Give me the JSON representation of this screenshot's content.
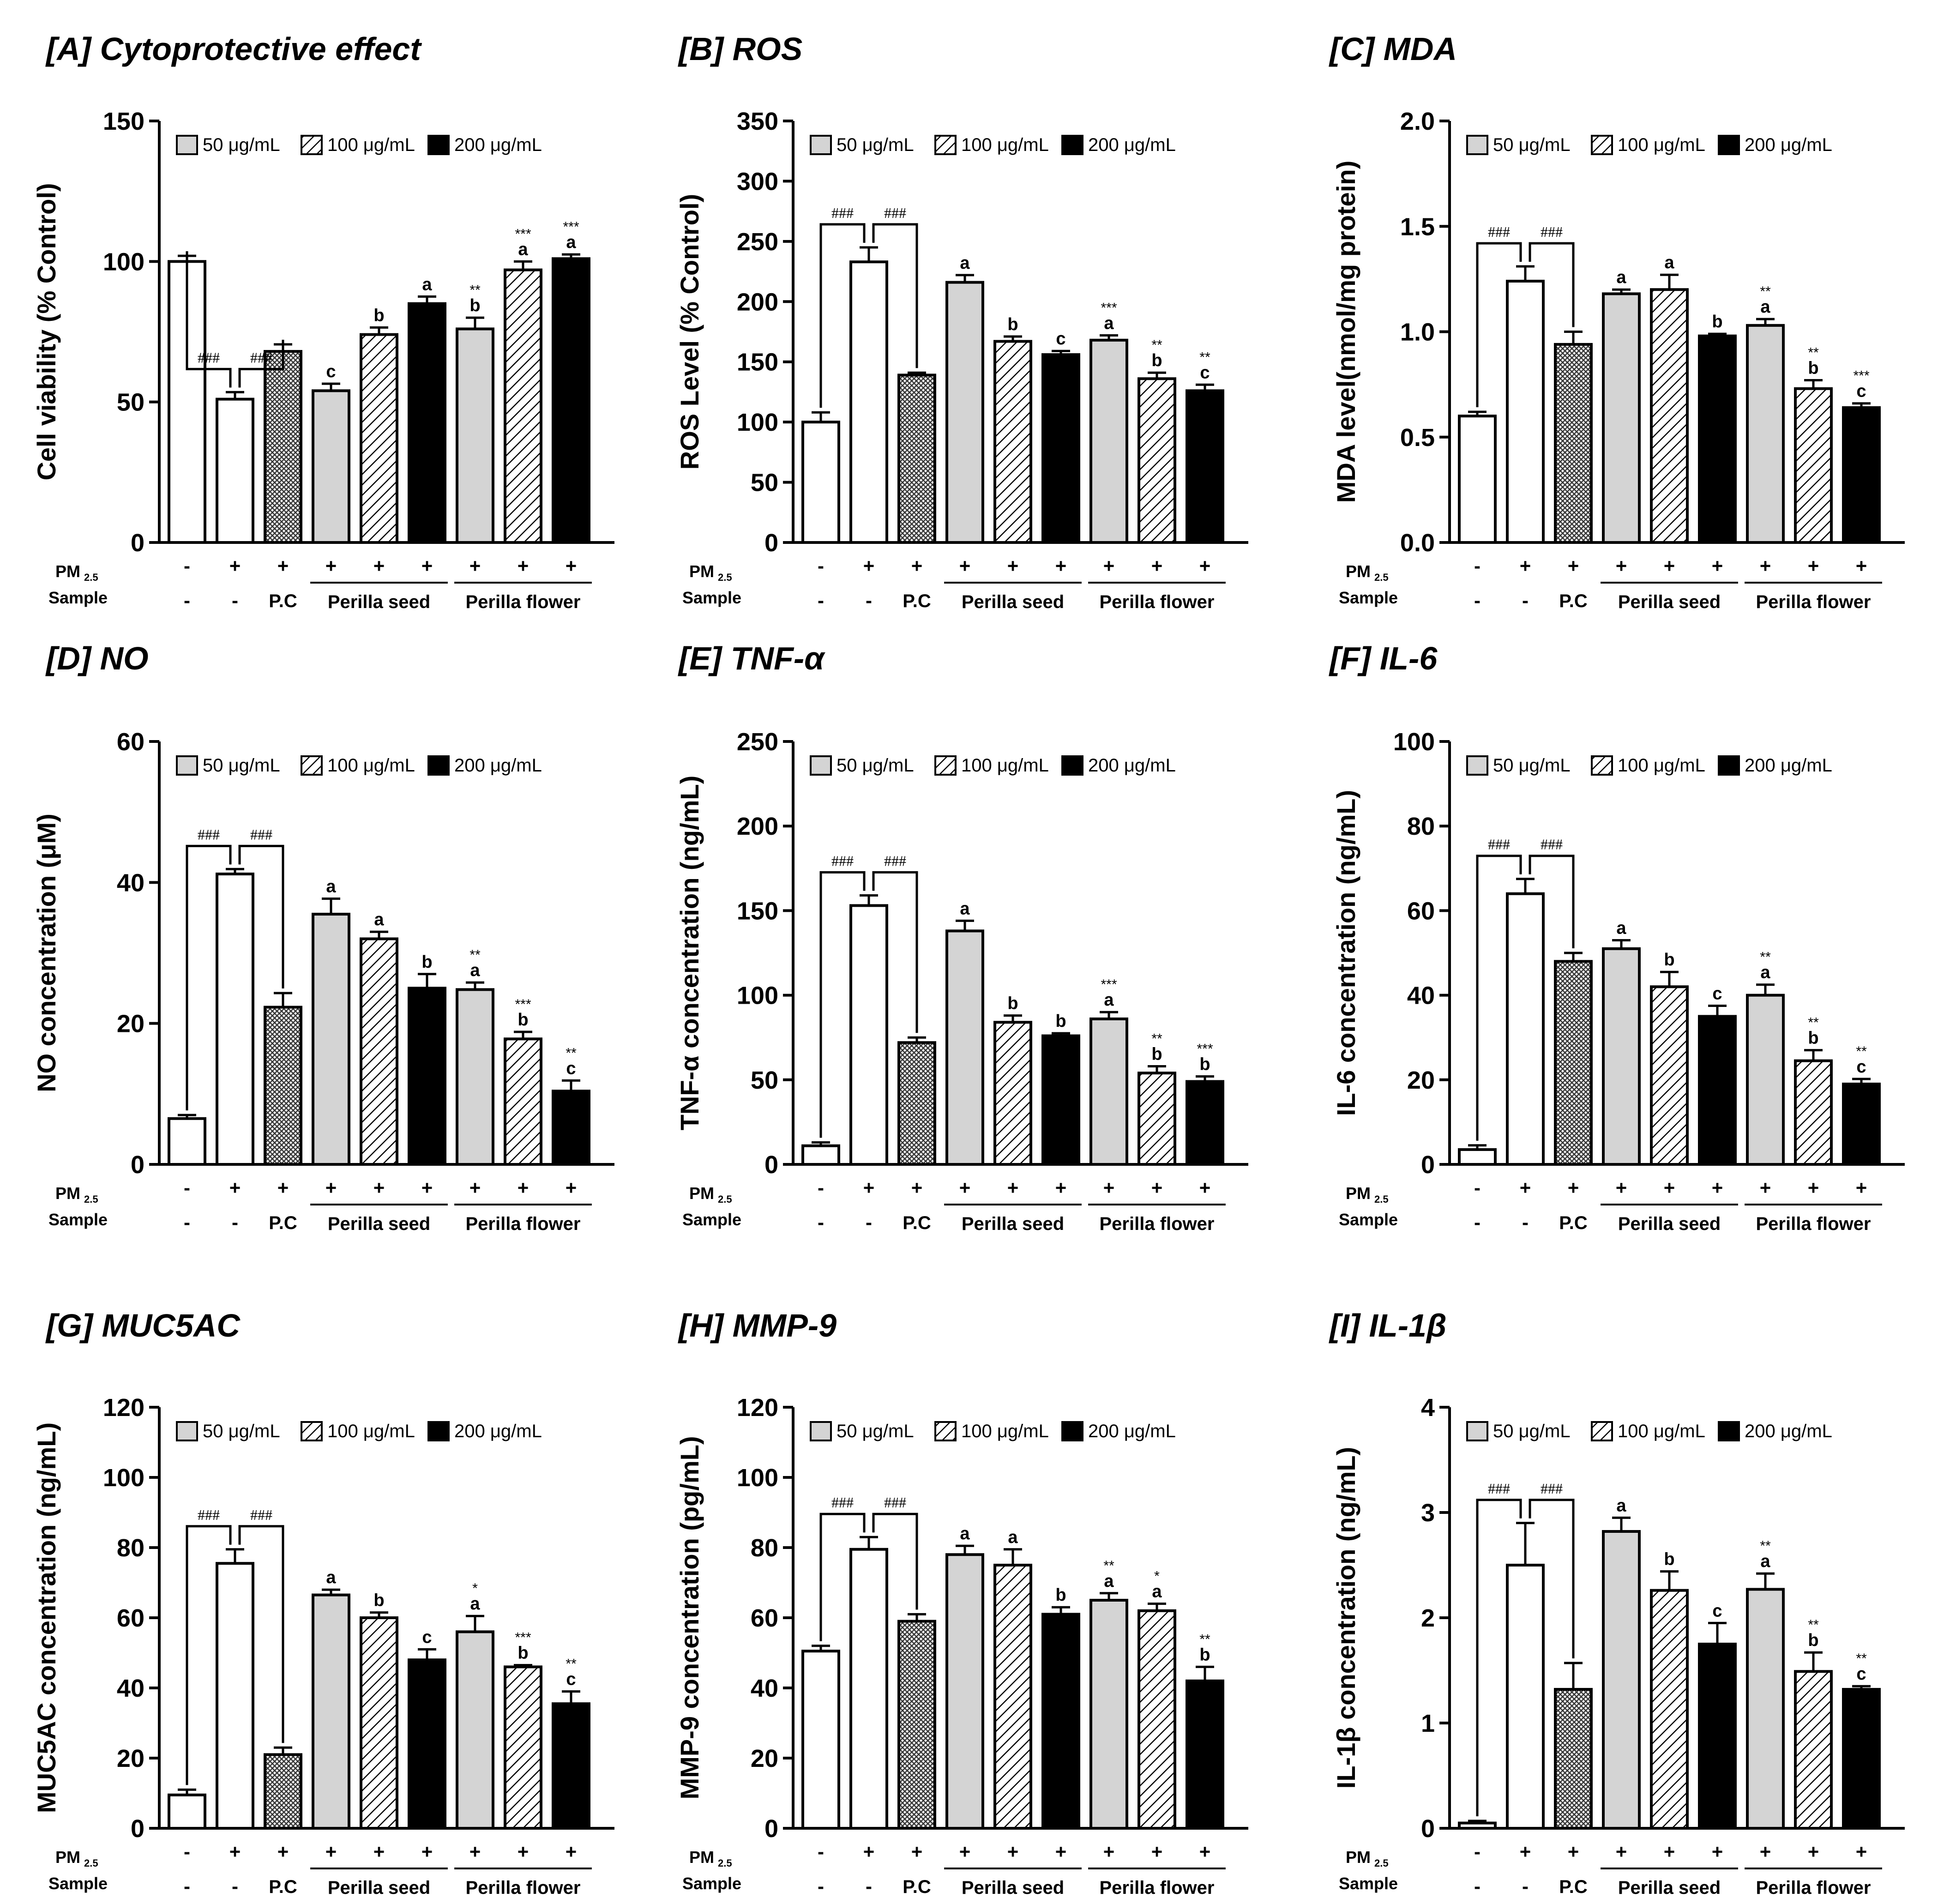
{
  "colors": {
    "white_fill": "#ffffff",
    "light_gray": "#d4d4d4",
    "black": "#000000",
    "pc_fill": "#5e5e5e"
  },
  "common": {
    "legend": [
      "50 μg/mL",
      "100 μg/mL",
      "200 μg/mL"
    ],
    "pm_row_label": "PM",
    "pm_row_sub": "2.5",
    "sample_row_label": "Sample",
    "pm_signs": [
      "-",
      "+",
      "+",
      "+",
      "+",
      "+",
      "+",
      "+",
      "+"
    ],
    "sample_signs": [
      "-",
      "-",
      "P.C"
    ],
    "group_labels": [
      "Perilla seed",
      "Perilla flower"
    ],
    "hash_label": "###"
  },
  "chart_data": [
    {
      "type": "bar",
      "title": "[A] Cytoprotective effect",
      "ylabel": "Cell viability (% Control)",
      "ylim": [
        0,
        150
      ],
      "yticks": [
        "0",
        "50",
        "100",
        "150"
      ],
      "values": [
        100,
        51,
        68,
        54,
        74,
        85,
        76,
        97,
        101
      ],
      "errors": [
        2,
        2.5,
        2.5,
        2.5,
        2.5,
        2.5,
        4,
        3,
        1.5
      ],
      "letters": [
        "",
        "",
        "",
        "c",
        "b",
        "a",
        "b",
        "a",
        "a"
      ],
      "stars": [
        "",
        "",
        "",
        "",
        "",
        "",
        "**",
        "***",
        "***"
      ],
      "brackets": [
        [
          0,
          1,
          "###"
        ],
        [
          1,
          2,
          "###"
        ]
      ]
    },
    {
      "type": "bar",
      "title": "[B] ROS",
      "ylabel": "ROS Level (% Control)",
      "ylim": [
        0,
        350
      ],
      "yticks": [
        "0",
        "50",
        "100",
        "150",
        "200",
        "250",
        "300",
        "350"
      ],
      "values": [
        100,
        233,
        139,
        216,
        167,
        156,
        168,
        136,
        126
      ],
      "errors": [
        8,
        12,
        2,
        6,
        4,
        3,
        4,
        5,
        5
      ],
      "letters": [
        "",
        "",
        "",
        "a",
        "b",
        "c",
        "a",
        "b",
        "c"
      ],
      "stars": [
        "",
        "",
        "",
        "",
        "",
        "",
        "***",
        "**",
        "**"
      ],
      "brackets": [
        [
          0,
          1,
          "###"
        ],
        [
          1,
          2,
          "###"
        ]
      ]
    },
    {
      "type": "bar",
      "title": "[C] MDA",
      "ylabel": "MDA level(nmol/mg protein)",
      "ylim": [
        0,
        2.0
      ],
      "yticks": [
        "0.0",
        "0.5",
        "1.0",
        "1.5",
        "2.0"
      ],
      "values": [
        0.6,
        1.24,
        0.94,
        1.18,
        1.2,
        0.98,
        1.03,
        0.73,
        0.64
      ],
      "errors": [
        0.02,
        0.07,
        0.06,
        0.02,
        0.07,
        0.01,
        0.03,
        0.04,
        0.02
      ],
      "letters": [
        "",
        "",
        "",
        "a",
        "a",
        "b",
        "a",
        "b",
        "c"
      ],
      "stars": [
        "",
        "",
        "",
        "",
        "",
        "",
        "**",
        "**",
        "***"
      ],
      "brackets": [
        [
          0,
          1,
          "###"
        ],
        [
          1,
          2,
          "###"
        ]
      ]
    },
    {
      "type": "bar",
      "title": "[D] NO",
      "ylabel": "NO concentration (μM)",
      "ylim": [
        0,
        60
      ],
      "yticks": [
        "0",
        "20",
        "40",
        "60"
      ],
      "values": [
        6.5,
        41.2,
        22.3,
        35.5,
        32,
        25,
        24.8,
        17.8,
        10.4
      ],
      "errors": [
        0.5,
        0.7,
        2,
        2.2,
        1,
        2,
        1,
        1,
        1.5
      ],
      "letters": [
        "",
        "",
        "",
        "a",
        "a",
        "b",
        "a",
        "b",
        "c"
      ],
      "stars": [
        "",
        "",
        "",
        "",
        "",
        "",
        "**",
        "***",
        "**"
      ],
      "brackets": [
        [
          0,
          1,
          "###"
        ],
        [
          1,
          2,
          "###"
        ]
      ]
    },
    {
      "type": "bar",
      "title": "[E] TNF-α",
      "ylabel": "TNF-α concentration (ng/mL)",
      "ylim": [
        0,
        250
      ],
      "yticks": [
        "0",
        "50",
        "100",
        "150",
        "200",
        "250"
      ],
      "values": [
        11,
        153,
        72,
        138,
        84,
        76,
        86,
        54,
        49
      ],
      "errors": [
        2,
        6,
        3,
        6,
        4,
        1.5,
        4,
        4,
        3
      ],
      "letters": [
        "",
        "",
        "",
        "a",
        "b",
        "b",
        "a",
        "b",
        "b"
      ],
      "stars": [
        "",
        "",
        "",
        "",
        "",
        "",
        "***",
        "**",
        "***"
      ],
      "brackets": [
        [
          0,
          1,
          "###"
        ],
        [
          1,
          2,
          "###"
        ]
      ]
    },
    {
      "type": "bar",
      "title": "[F] IL-6",
      "ylabel": "IL-6 concentration (ng/mL)",
      "ylim": [
        0,
        100
      ],
      "yticks": [
        "0",
        "20",
        "40",
        "60",
        "80",
        "100"
      ],
      "values": [
        3.5,
        64,
        48,
        51,
        42,
        35,
        40,
        24.5,
        19
      ],
      "errors": [
        1,
        3.5,
        2,
        2,
        3.5,
        2.5,
        2.5,
        2.5,
        1.2
      ],
      "letters": [
        "",
        "",
        "",
        "a",
        "b",
        "c",
        "a",
        "b",
        "c"
      ],
      "stars": [
        "",
        "",
        "",
        "",
        "",
        "",
        "**",
        "**",
        "**"
      ],
      "brackets": [
        [
          0,
          1,
          "###"
        ],
        [
          1,
          2,
          "###"
        ]
      ]
    },
    {
      "type": "bar",
      "title": "[G] MUC5AC",
      "ylabel": "MUC5AC concentration (ng/mL)",
      "ylim": [
        0,
        120
      ],
      "yticks": [
        "0",
        "20",
        "40",
        "60",
        "80",
        "100",
        "120"
      ],
      "values": [
        9.5,
        75.5,
        21,
        66.5,
        60,
        48,
        56,
        46,
        35.5
      ],
      "errors": [
        1.5,
        4,
        2,
        1.5,
        1.5,
        3,
        4.5,
        0.5,
        3.5
      ],
      "letters": [
        "",
        "",
        "",
        "a",
        "b",
        "c",
        "a",
        "b",
        "c"
      ],
      "stars": [
        "",
        "",
        "",
        "",
        "",
        "",
        "*",
        "***",
        "**"
      ],
      "brackets": [
        [
          0,
          1,
          "###"
        ],
        [
          1,
          2,
          "###"
        ]
      ]
    },
    {
      "type": "bar",
      "title": "[H] MMP-9",
      "ylabel": "MMP-9 concentration (pg/mL)",
      "ylim": [
        0,
        120
      ],
      "yticks": [
        "0",
        "20",
        "40",
        "60",
        "80",
        "100",
        "120"
      ],
      "values": [
        50.5,
        79.5,
        59,
        78,
        75,
        61,
        65,
        62,
        42
      ],
      "errors": [
        1.5,
        3.5,
        2,
        2.5,
        4.5,
        2,
        2,
        2,
        4
      ],
      "letters": [
        "",
        "",
        "",
        "a",
        "a",
        "b",
        "a",
        "a",
        "b"
      ],
      "stars": [
        "",
        "",
        "",
        "",
        "",
        "",
        "**",
        "*",
        "**"
      ],
      "brackets": [
        [
          0,
          1,
          "###"
        ],
        [
          1,
          2,
          "###"
        ]
      ]
    },
    {
      "type": "bar",
      "title": "[I] IL-1β",
      "ylabel": "IL-1β concentration (ng/mL)",
      "ylim": [
        0,
        4
      ],
      "yticks": [
        "0",
        "1",
        "2",
        "3",
        "4"
      ],
      "values": [
        0.05,
        2.5,
        1.32,
        2.82,
        2.26,
        1.75,
        2.27,
        1.49,
        1.32
      ],
      "errors": [
        0.02,
        0.4,
        0.25,
        0.13,
        0.18,
        0.2,
        0.15,
        0.18,
        0.03
      ],
      "letters": [
        "",
        "",
        "",
        "a",
        "b",
        "c",
        "a",
        "b",
        "c"
      ],
      "stars": [
        "",
        "",
        "",
        "",
        "",
        "",
        "**",
        "**",
        "**"
      ],
      "brackets": [
        [
          0,
          1,
          "###"
        ],
        [
          1,
          2,
          "###"
        ]
      ]
    }
  ]
}
